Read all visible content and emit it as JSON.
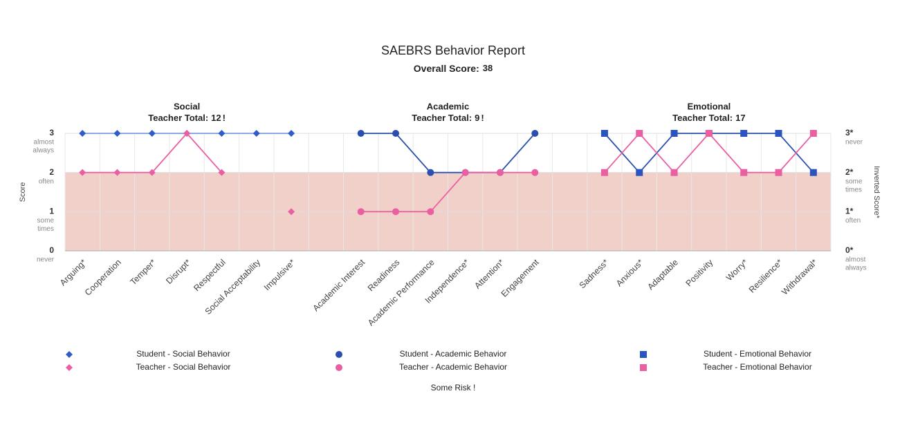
{
  "chart_data": {
    "type": "line",
    "title": "SAEBRS Behavior Report",
    "overall_label": "Overall Score:",
    "overall_score": 38,
    "y_label": "Score",
    "y2_label": "Inverted Score*",
    "ylim": [
      0,
      3
    ],
    "yticks": [
      {
        "value": 0,
        "label": "0",
        "caption": [
          "never"
        ]
      },
      {
        "value": 1,
        "label": "1",
        "caption": [
          "some",
          "times"
        ]
      },
      {
        "value": 2,
        "label": "2",
        "caption": [
          "often"
        ]
      },
      {
        "value": 3,
        "label": "3",
        "caption": [
          "almost",
          "always"
        ]
      }
    ],
    "y2lim": [
      0,
      3
    ],
    "y2ticks": [
      {
        "value": 0,
        "label": "0*",
        "caption": [
          "almost",
          "always"
        ]
      },
      {
        "value": 1,
        "label": "1*",
        "caption": [
          "often"
        ]
      },
      {
        "value": 2,
        "label": "2*",
        "caption": [
          "some",
          "times"
        ]
      },
      {
        "value": 3,
        "label": "3*",
        "caption": [
          "never"
        ]
      }
    ],
    "grid": true,
    "risk_band": {
      "label": "Some Risk !",
      "from": 0,
      "to": 2,
      "color": "#f0d0c8"
    },
    "groups": [
      {
        "name": "Social",
        "total_label": "Teacher Total:",
        "total": 12,
        "flag": "!",
        "categories": [
          "Arguing*",
          "Cooperation",
          "Temper*",
          "Disrupt*",
          "Respectful",
          "Social Acceptability",
          "Impulsive*"
        ],
        "series": [
          {
            "name": "Student - Social Behavior",
            "color": "#2f5cc8",
            "line_color": "#7d9be6",
            "marker": "diamond",
            "values": [
              3,
              3,
              3,
              3,
              3,
              3,
              3
            ]
          },
          {
            "name": "Teacher - Social Behavior",
            "color": "#ea5fa2",
            "line_color": "#ea5fa2",
            "marker": "diamond",
            "values": [
              2,
              2,
              2,
              3,
              2,
              null,
              1
            ]
          }
        ]
      },
      {
        "name": "Academic",
        "total_label": "Teacher Total:",
        "total": 9,
        "flag": "!",
        "categories": [
          "Academic Interest",
          "Readiness",
          "Academic Performance",
          "Independence*",
          "Attention*",
          "Engagement"
        ],
        "series": [
          {
            "name": "Student - Academic Behavior",
            "color": "#2a4fae",
            "line_color": "#2a4fae",
            "marker": "circle",
            "values": [
              3,
              3,
              2,
              2,
              2,
              3
            ]
          },
          {
            "name": "Teacher - Academic Behavior",
            "color": "#ea5fa2",
            "line_color": "#ea5fa2",
            "marker": "circle",
            "values": [
              1,
              1,
              1,
              2,
              2,
              2
            ]
          }
        ]
      },
      {
        "name": "Emotional",
        "total_label": "Teacher Total:",
        "total": 17,
        "categories": [
          "Sadness*",
          "Anxious*",
          "Adaptable",
          "Positivity",
          "Worry*",
          "Resilience*",
          "Withdrawal*"
        ],
        "series": [
          {
            "name": "Student - Emotional Behavior",
            "color": "#2a55c0",
            "line_color": "#2a4fae",
            "marker": "square",
            "values": [
              3,
              2,
              3,
              3,
              3,
              3,
              2
            ]
          },
          {
            "name": "Teacher - Emotional Behavior",
            "color": "#ea5fa2",
            "line_color": "#ea5fa2",
            "marker": "square",
            "values": [
              2,
              3,
              2,
              3,
              2,
              2,
              3
            ]
          }
        ]
      }
    ]
  }
}
